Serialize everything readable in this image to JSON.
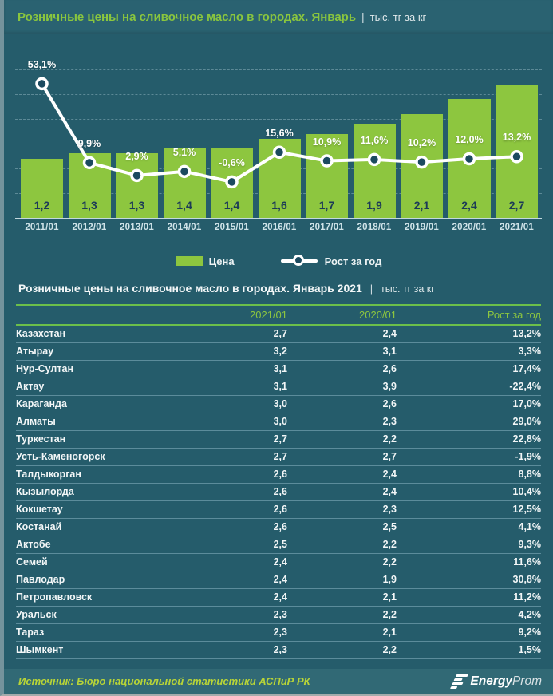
{
  "header": {
    "title": "Розничные цены на сливочное масло в городах. Январь",
    "separator": "|",
    "units": "тыс. тг за кг"
  },
  "chart_data": {
    "type": "bar",
    "subtype": "bar+line combo",
    "title": "Розничные цены на сливочное масло в городах. Январь",
    "units": "тыс. тг за кг",
    "categories": [
      "2011/01",
      "2012/01",
      "2013/01",
      "2014/01",
      "2015/01",
      "2016/01",
      "2017/01",
      "2018/01",
      "2019/01",
      "2020/01",
      "2021/01"
    ],
    "series": [
      {
        "name": "Цена",
        "type": "bar",
        "values": [
          1.2,
          1.3,
          1.3,
          1.4,
          1.4,
          1.6,
          1.7,
          1.9,
          2.1,
          2.4,
          2.7
        ]
      },
      {
        "name": "Рост за год",
        "type": "line",
        "unit": "%",
        "values": [
          53.1,
          9.9,
          2.9,
          5.1,
          -0.6,
          15.6,
          10.9,
          11.6,
          10.2,
          12.0,
          13.2
        ]
      }
    ],
    "bar_color": "#8dc63f",
    "line_color": "#ffffff",
    "marker_fill": "#1b4a5f",
    "background": "#255c6b",
    "grid": "dashed horizontal, every 0.5 (price axis), 0 to 3.0",
    "ylim_price": [
      0,
      3.35
    ],
    "legend_position": "bottom center"
  },
  "legend": {
    "price_label": "Цена",
    "growth_label": "Рост за год"
  },
  "table": {
    "title": "Розничные цены на сливочное масло в городах. Январь 2021",
    "separator": "|",
    "units": "тыс. тг за кг",
    "columns": [
      "",
      "2021/01",
      "2020/01",
      "Рост за год"
    ],
    "rows": [
      {
        "name": "Казахстан",
        "v2021": "2,7",
        "v2020": "2,4",
        "growth": "13,2%",
        "bold": true
      },
      {
        "name": "Атырау",
        "v2021": "3,2",
        "v2020": "3,1",
        "growth": "3,3%",
        "bold": false
      },
      {
        "name": "Нур-Султан",
        "v2021": "3,1",
        "v2020": "2,6",
        "growth": "17,4%",
        "bold": false
      },
      {
        "name": "Актау",
        "v2021": "3,1",
        "v2020": "3,9",
        "growth": "-22,4%",
        "bold": false
      },
      {
        "name": "Караганда",
        "v2021": "3,0",
        "v2020": "2,6",
        "growth": "17,0%",
        "bold": false
      },
      {
        "name": "Алматы",
        "v2021": "3,0",
        "v2020": "2,3",
        "growth": "29,0%",
        "bold": false
      },
      {
        "name": "Туркестан",
        "v2021": "2,7",
        "v2020": "2,2",
        "growth": "22,8%",
        "bold": false
      },
      {
        "name": "Усть-Каменогорск",
        "v2021": "2,7",
        "v2020": "2,7",
        "growth": "-1,9%",
        "bold": false
      },
      {
        "name": "Талдыкорган",
        "v2021": "2,6",
        "v2020": "2,4",
        "growth": "8,8%",
        "bold": false
      },
      {
        "name": "Кызылорда",
        "v2021": "2,6",
        "v2020": "2,4",
        "growth": "10,4%",
        "bold": false
      },
      {
        "name": "Кокшетау",
        "v2021": "2,6",
        "v2020": "2,3",
        "growth": "12,5%",
        "bold": false
      },
      {
        "name": "Костанай",
        "v2021": "2,6",
        "v2020": "2,5",
        "growth": "4,1%",
        "bold": false
      },
      {
        "name": "Актобе",
        "v2021": "2,5",
        "v2020": "2,2",
        "growth": "9,3%",
        "bold": false
      },
      {
        "name": "Семей",
        "v2021": "2,4",
        "v2020": "2,2",
        "growth": "11,6%",
        "bold": false
      },
      {
        "name": "Павлодар",
        "v2021": "2,4",
        "v2020": "1,9",
        "growth": "30,8%",
        "bold": false
      },
      {
        "name": "Петропавловск",
        "v2021": "2,4",
        "v2020": "2,1",
        "growth": "11,2%",
        "bold": false
      },
      {
        "name": "Уральск",
        "v2021": "2,3",
        "v2020": "2,2",
        "growth": "4,2%",
        "bold": false
      },
      {
        "name": "Тараз",
        "v2021": "2,3",
        "v2020": "2,1",
        "growth": "9,2%",
        "bold": false
      },
      {
        "name": "Шымкент",
        "v2021": "2,3",
        "v2020": "2,2",
        "growth": "1,5%",
        "bold": false
      }
    ]
  },
  "footer": {
    "source": "Источник: Бюро национальной  статистики АСПиР РК",
    "logo_bold": "Energy",
    "logo_light": "Prom"
  }
}
